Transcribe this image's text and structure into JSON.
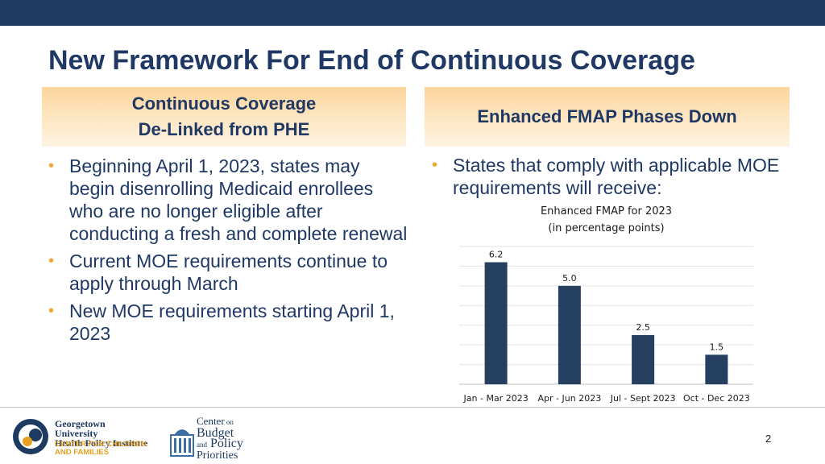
{
  "slide": {
    "title": "New Framework For End of Continuous Coverage",
    "page_number": "2"
  },
  "left_panel": {
    "header_line1": "Continuous Coverage",
    "header_line2": "De-Linked from PHE",
    "bullets": [
      "Beginning April 1, 2023, states may begin disenrolling Medicaid enrollees who are no longer eligible after conducting a fresh and complete renewal",
      "Current MOE requirements continue to apply through March",
      "New MOE requirements starting April 1, 2023"
    ]
  },
  "right_panel": {
    "header": "Enhanced FMAP Phases Down",
    "bullets": [
      "States that comply with applicable MOE requirements will receive:"
    ]
  },
  "chart_data": {
    "type": "bar",
    "title": "Enhanced FMAP for 2023",
    "subtitle": "(in percentage points)",
    "categories": [
      "Jan - Mar 2023",
      "Apr - Jun 2023",
      "Jul - Sept 2023",
      "Oct - Dec 2023"
    ],
    "values": [
      6.2,
      5.0,
      2.5,
      1.5
    ],
    "value_labels": [
      "6.2",
      "5.0",
      "2.5",
      "1.5"
    ],
    "ylim": [
      0,
      7
    ],
    "grid": true,
    "bar_color": "#243f60"
  },
  "logos": {
    "georgetown": {
      "line1": "Georgetown University",
      "line2": "Health Policy Institute",
      "line3": "CENTER FOR CHILDREN",
      "line4": "AND FAMILIES"
    },
    "cbpp": {
      "line1": "Center",
      "line1b": "on",
      "line2": "Budget",
      "line3a": "and",
      "line3": "Policy",
      "line4": "Priorities"
    }
  }
}
